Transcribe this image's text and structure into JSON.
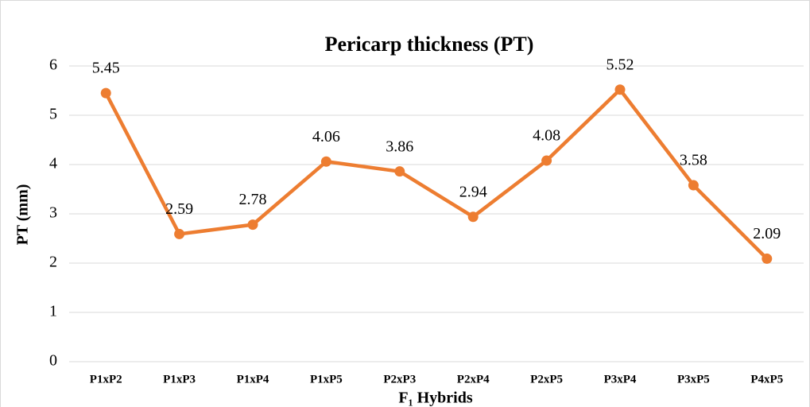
{
  "chart_data": {
    "type": "line",
    "title": "Pericarp thickness (PT)",
    "y_label": "PT (mm)",
    "x_label": "F₁ Hybrids",
    "categories": [
      "P1xP2",
      "P1xP3",
      "P1xP4",
      "P1xP5",
      "P2xP3",
      "P2xP4",
      "P2xP5",
      "P3xP4",
      "P3xP5",
      "P4xP5"
    ],
    "series": [
      {
        "name": "PT",
        "color": "#ed7d31",
        "values": [
          5.45,
          2.59,
          2.78,
          4.06,
          3.86,
          2.94,
          4.08,
          5.52,
          3.58,
          2.09
        ]
      }
    ],
    "ylim": [
      0,
      6
    ],
    "yticks": [
      0,
      1,
      2,
      3,
      4,
      5,
      6
    ],
    "grid": true
  }
}
